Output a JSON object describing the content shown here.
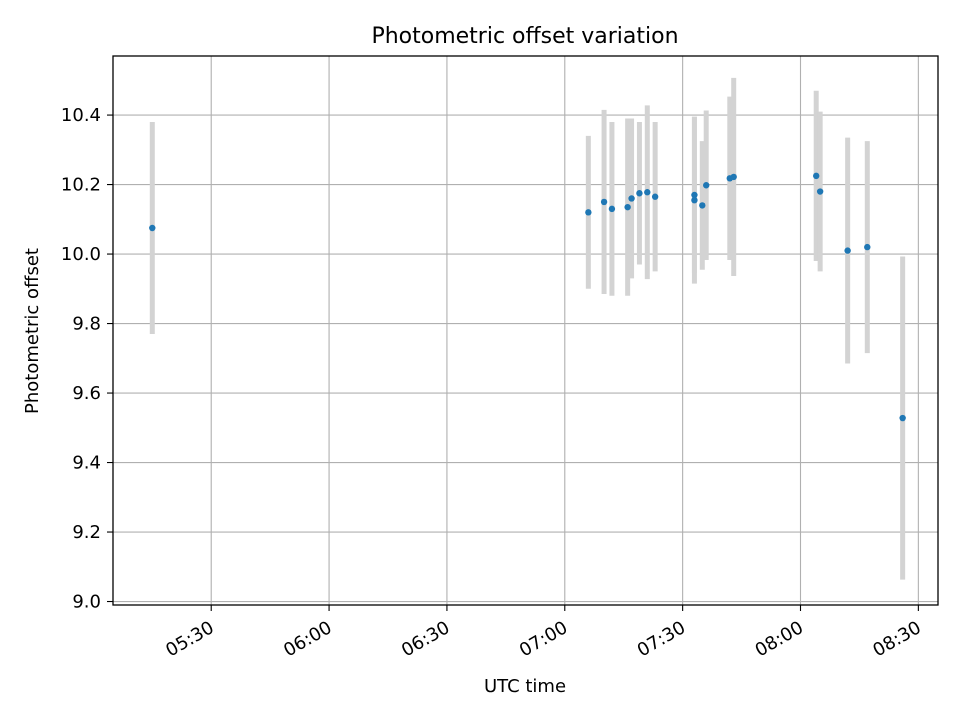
{
  "chart_data": {
    "type": "scatter",
    "title": "Photometric offset variation",
    "xlabel": "UTC time",
    "ylabel": "Photometric offset",
    "x_ticks": [
      "05:30",
      "06:00",
      "06:30",
      "07:00",
      "07:30",
      "08:00",
      "08:30"
    ],
    "y_ticks": [
      "9.0",
      "9.2",
      "9.4",
      "9.6",
      "9.8",
      "10.0",
      "10.2",
      "10.4"
    ],
    "xlim": [
      "05:05",
      "08:35"
    ],
    "ylim": [
      8.99,
      10.57
    ],
    "grid": true,
    "colors": {
      "marker": "#1f77b4",
      "errorbar": "#d3d3d3",
      "grid": "#b0b0b0"
    },
    "series": [
      {
        "points": [
          {
            "x": "05:15",
            "y": 10.075,
            "err": 0.305
          },
          {
            "x": "07:06",
            "y": 10.12,
            "err": 0.22
          },
          {
            "x": "07:10",
            "y": 10.15,
            "err": 0.265
          },
          {
            "x": "07:12",
            "y": 10.13,
            "err": 0.25
          },
          {
            "x": "07:16",
            "y": 10.135,
            "err": 0.255
          },
          {
            "x": "07:17",
            "y": 10.16,
            "err": 0.23
          },
          {
            "x": "07:19",
            "y": 10.175,
            "err": 0.205
          },
          {
            "x": "07:21",
            "y": 10.178,
            "err": 0.25
          },
          {
            "x": "07:23",
            "y": 10.165,
            "err": 0.215
          },
          {
            "x": "07:33",
            "y": 10.155,
            "err": 0.24
          },
          {
            "x": "07:33",
            "y": 10.17,
            "err": 0.225
          },
          {
            "x": "07:35",
            "y": 10.14,
            "err": 0.185
          },
          {
            "x": "07:36",
            "y": 10.198,
            "err": 0.215
          },
          {
            "x": "07:42",
            "y": 10.218,
            "err": 0.235
          },
          {
            "x": "07:43",
            "y": 10.222,
            "err": 0.285
          },
          {
            "x": "08:04",
            "y": 10.225,
            "err": 0.245
          },
          {
            "x": "08:05",
            "y": 10.18,
            "err": 0.23
          },
          {
            "x": "08:12",
            "y": 10.01,
            "err": 0.325
          },
          {
            "x": "08:17",
            "y": 10.02,
            "err": 0.305
          },
          {
            "x": "08:26",
            "y": 9.528,
            "err": 0.465
          }
        ]
      }
    ]
  }
}
